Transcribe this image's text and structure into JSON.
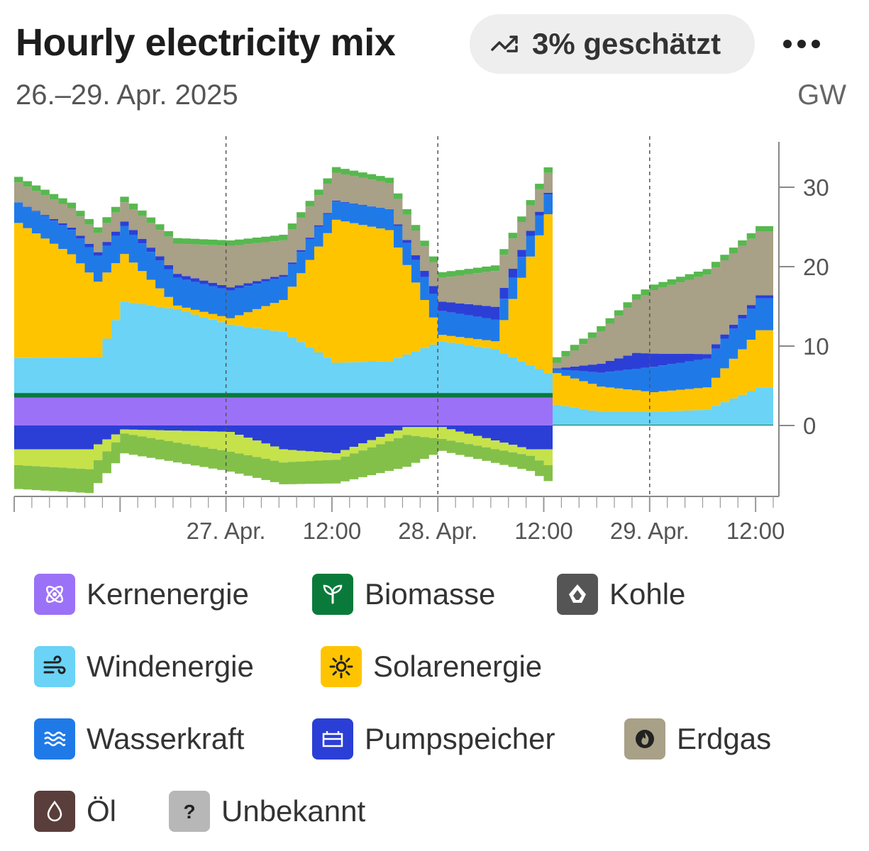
{
  "header": {
    "title": "Hourly electricity mix",
    "estimate_label": "3% geschätzt",
    "date_range": "26.–29. Apr. 2025",
    "unit": "GW"
  },
  "chart_data": {
    "type": "area",
    "title": "Hourly electricity mix",
    "subtitle": "26.–29. Apr. 2025",
    "ylabel": "GW",
    "ylim": [
      -8,
      35
    ],
    "yticks": [
      0,
      10,
      20,
      30
    ],
    "x_start": "2025-04-26 00:00",
    "x_end": "2025-04-29 14:00",
    "xtick_labels": [
      {
        "x": "2025-04-27 00:00",
        "label": "27. Apr."
      },
      {
        "x": "2025-04-27 12:00",
        "label": "12:00"
      },
      {
        "x": "2025-04-28 00:00",
        "label": "28. Apr."
      },
      {
        "x": "2025-04-28 12:00",
        "label": "12:00"
      },
      {
        "x": "2025-04-29 00:00",
        "label": "29. Apr."
      },
      {
        "x": "2025-04-29 12:00",
        "label": "12:00"
      }
    ],
    "day_lines": [
      "2025-04-27 00:00",
      "2025-04-28 00:00",
      "2025-04-29 00:00"
    ],
    "stack_above": [
      "nuclear",
      "biomass",
      "wind",
      "solar",
      "hydro",
      "pumped",
      "gas",
      "unknown",
      "oil"
    ],
    "stack_below": [
      "pumped_storage_charge",
      "exports_a",
      "exports_b"
    ],
    "series": {
      "nuclear": {
        "times": [
          "2025-04-26 00:00",
          "2025-04-28 12:00",
          "2025-04-28 13:00",
          "2025-04-29 14:00"
        ],
        "values": [
          3.5,
          3.5,
          0,
          0
        ]
      },
      "biomass": {
        "times": [
          "2025-04-26 00:00",
          "2025-04-28 12:00",
          "2025-04-28 13:00",
          "2025-04-29 14:00"
        ],
        "values": [
          0.6,
          0.6,
          0.1,
          0.1
        ]
      },
      "wind": {
        "times": [
          "2025-04-26 00:00",
          "2025-04-26 09:00",
          "2025-04-26 12:00",
          "2025-04-26 18:00",
          "2025-04-27 00:00",
          "2025-04-27 06:00",
          "2025-04-27 12:00",
          "2025-04-27 18:00",
          "2025-04-28 00:00",
          "2025-04-28 06:00",
          "2025-04-28 12:00",
          "2025-04-28 13:00",
          "2025-04-28 18:00",
          "2025-04-29 00:00",
          "2025-04-29 06:00",
          "2025-04-29 12:00",
          "2025-04-29 14:00"
        ],
        "values": [
          4.4,
          4.5,
          11.5,
          10.5,
          8.6,
          7.7,
          3.8,
          4.0,
          6.5,
          5.5,
          2.5,
          2.5,
          1.6,
          1.6,
          1.9,
          4.7,
          4.7
        ]
      },
      "solar": {
        "times": [
          "2025-04-26 00:00",
          "2025-04-26 06:00",
          "2025-04-26 12:00",
          "2025-04-26 18:00",
          "2025-04-27 00:00",
          "2025-04-27 06:00",
          "2025-04-27 12:00",
          "2025-04-27 18:00",
          "2025-04-28 00:00",
          "2025-04-28 06:00",
          "2025-04-28 12:00",
          "2025-04-28 13:00",
          "2025-04-28 18:00",
          "2025-04-29 00:00",
          "2025-04-29 06:00",
          "2025-04-29 12:00",
          "2025-04-29 14:00"
        ],
        "values": [
          17.0,
          13.0,
          6.0,
          0.5,
          0.8,
          4.0,
          18.0,
          16.5,
          0.8,
          1.0,
          20.0,
          4.0,
          3.2,
          2.5,
          2.8,
          7.2,
          7.2
        ]
      },
      "hydro": {
        "times": [
          "2025-04-26 00:00",
          "2025-04-26 12:00",
          "2025-04-27 00:00",
          "2025-04-27 12:00",
          "2025-04-28 00:00",
          "2025-04-28 12:00",
          "2025-04-28 13:00",
          "2025-04-29 00:00",
          "2025-04-29 12:00",
          "2025-04-29 14:00"
        ],
        "values": [
          2.6,
          3.5,
          3.5,
          2.3,
          3.0,
          2.5,
          0.5,
          3.2,
          4.0,
          4.0
        ]
      },
      "pumped": {
        "times": [
          "2025-04-26 00:00",
          "2025-04-26 12:00",
          "2025-04-27 00:00",
          "2025-04-27 18:00",
          "2025-04-28 00:00",
          "2025-04-28 06:00",
          "2025-04-28 12:00",
          "2025-04-28 13:00",
          "2025-04-28 22:00",
          "2025-04-29 06:00",
          "2025-04-29 12:00",
          "2025-04-29 14:00"
        ],
        "values": [
          0,
          0.6,
          0.4,
          0,
          1.2,
          1.6,
          0.2,
          0.1,
          2.0,
          0.6,
          0.4,
          0.4
        ]
      },
      "gas": {
        "times": [
          "2025-04-26 00:00",
          "2025-04-26 12:00",
          "2025-04-27 00:00",
          "2025-04-27 12:00",
          "2025-04-28 00:00",
          "2025-04-28 06:00",
          "2025-04-28 12:00",
          "2025-04-28 13:00",
          "2025-04-29 00:00",
          "2025-04-29 06:00",
          "2025-04-29 12:00",
          "2025-04-29 14:00"
        ],
        "values": [
          2.5,
          2.4,
          5.2,
          3.5,
          3.0,
          4.5,
          2.5,
          0.7,
          8.0,
          10.0,
          8.0,
          8.0
        ]
      },
      "unknown": {
        "times": [
          "2025-04-26 00:00",
          "2025-04-29 14:00"
        ],
        "values": [
          0,
          0
        ]
      },
      "oil": {
        "times": [
          "2025-04-26 00:00",
          "2025-04-29 14:00"
        ],
        "values": [
          0,
          0
        ]
      },
      "coal_line": {
        "times": [
          "2025-04-26 00:00",
          "2025-04-28 12:00",
          "2025-04-28 13:00",
          "2025-04-29 14:00"
        ],
        "values": [
          0,
          0,
          0.1,
          0.1
        ]
      },
      "pumped_storage_charge": {
        "times": [
          "2025-04-26 00:00",
          "2025-04-26 08:00",
          "2025-04-26 12:00",
          "2025-04-27 00:00",
          "2025-04-27 06:00",
          "2025-04-27 12:00",
          "2025-04-27 20:00",
          "2025-04-28 00:00",
          "2025-04-28 10:00",
          "2025-04-28 12:00",
          "2025-04-28 13:00",
          "2025-04-29 14:00"
        ],
        "values": [
          -3.0,
          -3.0,
          -0.5,
          -0.8,
          -3.0,
          -3.5,
          -0.2,
          -0.2,
          -3.0,
          -3.0,
          0,
          0
        ]
      },
      "exports_a": {
        "times": [
          "2025-04-26 00:00",
          "2025-04-26 08:00",
          "2025-04-26 12:00",
          "2025-04-27 00:00",
          "2025-04-27 12:00",
          "2025-04-27 20:00",
          "2025-04-28 00:00",
          "2025-04-28 10:00",
          "2025-04-28 12:00",
          "2025-04-28 13:00",
          "2025-04-29 14:00"
        ],
        "values": [
          -2.0,
          -2.5,
          -0.5,
          -2.5,
          -0.8,
          -1.0,
          -1.5,
          -0.8,
          -2.0,
          0,
          0
        ]
      },
      "exports_b": {
        "times": [
          "2025-04-26 00:00",
          "2025-04-26 08:00",
          "2025-04-26 12:00",
          "2025-04-27 00:00",
          "2025-04-27 12:00",
          "2025-04-27 20:00",
          "2025-04-28 00:00",
          "2025-04-28 12:00",
          "2025-04-28 13:00",
          "2025-04-29 14:00"
        ],
        "values": [
          -3.0,
          -3.0,
          -2.5,
          -2.5,
          -3.0,
          -4.0,
          -1.5,
          -2.0,
          0,
          0
        ]
      }
    },
    "colors": {
      "nuclear": "#9b72f7",
      "biomass": "#0a7a3a",
      "wind": "#6ad3f6",
      "solar": "#ffc400",
      "hydro": "#1f7ae8",
      "pumped": "#2b3fd6",
      "gas": "#a8a087",
      "green_top": "#57b84f",
      "coal": "#222222",
      "oil": "#5a3e3b",
      "unknown": "#b7b7b7",
      "exports_a": "#c5e24b",
      "exports_b": "#83c04a"
    }
  },
  "legend": [
    {
      "label": "Kernenergie",
      "icon": "atom-icon",
      "color": "#9b72f7"
    },
    {
      "label": "Biomasse",
      "icon": "sprout-icon",
      "color": "#0a7a3a"
    },
    {
      "label": "Kohle",
      "icon": "coal-icon",
      "color": "#555555"
    },
    {
      "label": "Windenergie",
      "icon": "wind-icon",
      "color": "#6ad3f6"
    },
    {
      "label": "Solarenergie",
      "icon": "sun-icon",
      "color": "#ffc400"
    },
    {
      "label": "Wasserkraft",
      "icon": "waves-icon",
      "color": "#1f7ae8"
    },
    {
      "label": "Pumpspeicher",
      "icon": "battery-icon",
      "color": "#2b3fd6"
    },
    {
      "label": "Erdgas",
      "icon": "flame-icon",
      "color": "#a8a087"
    },
    {
      "label": "Öl",
      "icon": "oil-drop-icon",
      "color": "#5a3e3b"
    },
    {
      "label": "Unbekannt",
      "icon": "question-icon",
      "color": "#b7b7b7"
    }
  ]
}
